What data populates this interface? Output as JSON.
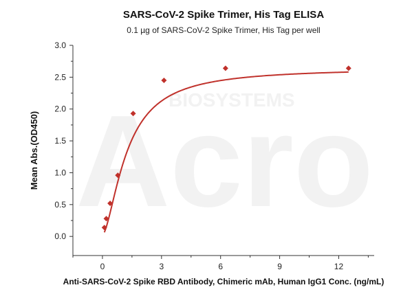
{
  "chart_data": {
    "type": "scatter",
    "title": "SARS-CoV-2 Spike Trimer, His Tag  ELISA",
    "subtitle": "0.1 µg of SARS-CoV-2 Spike Trimer, His Tag  per well",
    "xlabel": "Anti-SARS-CoV-2 Spike RBD Antibody, Chimeric mAb, Human IgG1 Conc. (ng/mL)",
    "ylabel": "Mean Abs.(OD450)",
    "xlim": [
      -1.5,
      13.8
    ],
    "ylim": [
      -0.3,
      3.0
    ],
    "xticks": [
      0,
      3,
      6,
      9,
      12
    ],
    "yticks": [
      0.0,
      0.5,
      1.0,
      1.5,
      2.0,
      2.5,
      3.0
    ],
    "ytick_labels": [
      "0.0",
      "0.5",
      "1.0",
      "1.5",
      "2.0",
      "2.5",
      "3.0"
    ],
    "grid": false,
    "series": [
      {
        "x": [
          0.098,
          0.195,
          0.39,
          0.78,
          1.56,
          3.125,
          6.25,
          12.5
        ],
        "y": [
          0.14,
          0.28,
          0.52,
          0.96,
          1.93,
          2.45,
          2.64,
          2.64
        ],
        "fit": "four-parameter sigmoidal",
        "color": "#c0312b"
      }
    ],
    "fit_params": {
      "bottom": 0.02,
      "top": 2.645,
      "ec50": 1.25,
      "hill": 1.6
    }
  },
  "watermark": {
    "brand": "Acro",
    "line": "BIOSYSTEMS"
  }
}
